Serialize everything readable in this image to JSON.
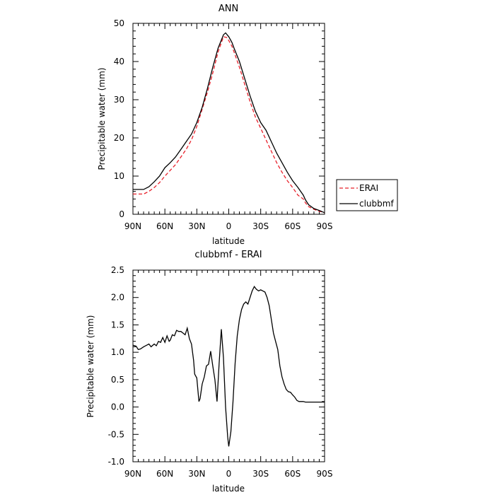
{
  "chart_data": [
    {
      "type": "line",
      "title": "ANN",
      "xlabel": "latitude",
      "ylabel": "Precipitable water (mm)",
      "xlim": [
        90,
        -90
      ],
      "ylim": [
        0,
        50
      ],
      "xticks": [
        90,
        60,
        30,
        0,
        -30,
        -60,
        -90
      ],
      "xticklabels": [
        "90N",
        "60N",
        "30N",
        "0",
        "30S",
        "60S",
        "90S"
      ],
      "yticks": [
        0,
        10,
        20,
        30,
        40,
        50
      ],
      "yticklabels": [
        "0",
        "10",
        "20",
        "30",
        "40",
        "50"
      ],
      "legend_position": "outside-right",
      "series": [
        {
          "name": "ERAI",
          "color": "#e8202a",
          "style": "dashed",
          "x": [
            90,
            80,
            75,
            70,
            65,
            60,
            55,
            50,
            45,
            40,
            35,
            30,
            25,
            20,
            15,
            10,
            5,
            2,
            0,
            -3,
            -5,
            -10,
            -15,
            -20,
            -25,
            -30,
            -35,
            -40,
            -45,
            -50,
            -55,
            -60,
            -65,
            -70,
            -72,
            -75,
            -80,
            -85,
            -90
          ],
          "y": [
            5.3,
            5.3,
            6,
            7,
            8.3,
            10,
            11.5,
            13,
            15,
            17,
            19.5,
            23,
            27.5,
            32,
            37,
            42.5,
            46.5,
            46.3,
            45.5,
            44,
            42.5,
            38.5,
            34,
            29.5,
            25.5,
            22.5,
            19.5,
            16.5,
            13.5,
            11,
            8.8,
            7,
            5,
            4,
            3,
            2,
            1.3,
            0.8,
            0.4
          ]
        },
        {
          "name": "clubbmf",
          "color": "#000000",
          "style": "solid",
          "x": [
            90,
            80,
            75,
            70,
            65,
            60,
            55,
            50,
            45,
            40,
            35,
            30,
            25,
            20,
            15,
            10,
            5,
            3,
            0,
            -3,
            -5,
            -10,
            -15,
            -20,
            -25,
            -30,
            -35,
            -40,
            -45,
            -50,
            -55,
            -60,
            -65,
            -70,
            -72,
            -75,
            -80,
            -85,
            -90
          ],
          "y": [
            6.5,
            6.5,
            7.2,
            8.5,
            10,
            12.2,
            13.5,
            15,
            17,
            19,
            21,
            24,
            28,
            33,
            38.5,
            43.5,
            47,
            47.5,
            46.5,
            45,
            43.5,
            40,
            35.5,
            31,
            27,
            24,
            22,
            19,
            16,
            13.5,
            11,
            8.8,
            7,
            5,
            3.8,
            2.5,
            1.5,
            1,
            0.4
          ]
        }
      ]
    },
    {
      "type": "line",
      "title": "clubbmf - ERAI",
      "xlabel": "latitude",
      "ylabel": "Precipitable water (mm)",
      "xlim": [
        90,
        -90
      ],
      "ylim": [
        -1.0,
        2.5
      ],
      "xticks": [
        90,
        60,
        30,
        0,
        -30,
        -60,
        -90
      ],
      "xticklabels": [
        "90N",
        "60N",
        "30N",
        "0",
        "30S",
        "60S",
        "90S"
      ],
      "yticks": [
        -1.0,
        -0.5,
        0.0,
        0.5,
        1.0,
        1.5,
        2.0,
        2.5
      ],
      "yticklabels": [
        "-1.0",
        "-0.5",
        "0.0",
        "0.5",
        "1.0",
        "1.5",
        "2.0",
        "2.5"
      ],
      "series": [
        {
          "name": "",
          "color": "#000000",
          "style": "solid",
          "x": [
            90,
            87,
            85,
            83,
            80,
            77,
            75,
            73,
            70,
            68,
            66,
            64,
            62,
            60,
            58,
            56,
            55,
            53,
            51,
            49,
            47,
            45,
            43,
            41,
            39,
            37,
            35,
            33,
            32,
            30,
            28,
            27,
            25,
            23,
            21,
            19,
            17,
            15,
            13,
            11,
            9,
            7,
            5,
            3,
            1,
            0,
            -2,
            -4,
            -6,
            -8,
            -10,
            -12,
            -14,
            -16,
            -18,
            -20,
            -22,
            -24,
            -26,
            -28,
            -30,
            -32,
            -34,
            -36,
            -38,
            -40,
            -42,
            -44,
            -46,
            -48,
            -50,
            -52,
            -54,
            -56,
            -58,
            -60,
            -62,
            -64,
            -66,
            -68,
            -70,
            -72,
            -74,
            -76,
            -78,
            -80,
            -82,
            -84,
            -86,
            -88,
            -90
          ],
          "y": [
            1.13,
            1.11,
            1.05,
            1.06,
            1.1,
            1.13,
            1.15,
            1.1,
            1.15,
            1.12,
            1.2,
            1.18,
            1.27,
            1.18,
            1.3,
            1.2,
            1.22,
            1.32,
            1.3,
            1.4,
            1.38,
            1.38,
            1.35,
            1.32,
            1.44,
            1.25,
            1.15,
            0.85,
            0.6,
            0.53,
            0.1,
            0.15,
            0.42,
            0.55,
            0.75,
            0.78,
            1.02,
            0.75,
            0.5,
            0.1,
            0.8,
            1.42,
            0.9,
            0.0,
            -0.55,
            -0.72,
            -0.45,
            0.1,
            0.8,
            1.3,
            1.6,
            1.78,
            1.88,
            1.92,
            1.88,
            2.0,
            2.12,
            2.2,
            2.15,
            2.12,
            2.14,
            2.12,
            2.1,
            2.0,
            1.85,
            1.6,
            1.35,
            1.2,
            1.05,
            0.75,
            0.55,
            0.42,
            0.32,
            0.28,
            0.27,
            0.22,
            0.18,
            0.12,
            0.1,
            0.1,
            0.1,
            0.09,
            0.09,
            0.09,
            0.09,
            0.09,
            0.09,
            0.09,
            0.09,
            0.09,
            0.09
          ]
        }
      ]
    }
  ]
}
